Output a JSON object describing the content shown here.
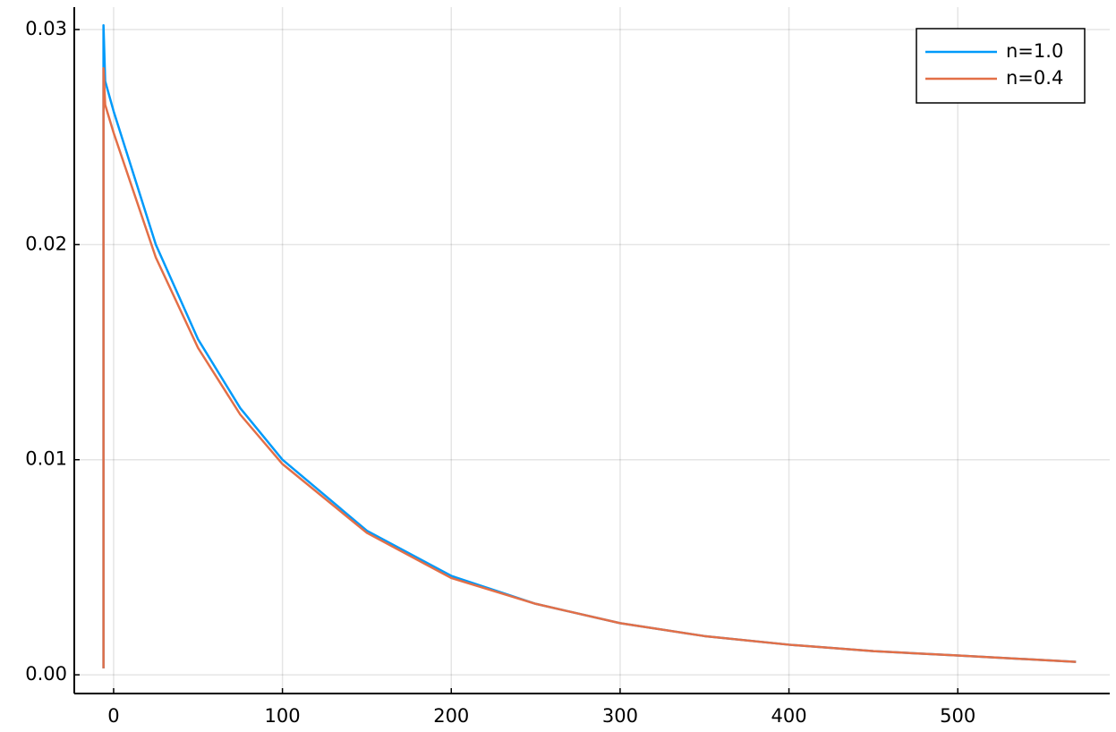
{
  "chart_data": {
    "type": "line",
    "x": [
      -6,
      -6,
      -5,
      0,
      25,
      50,
      75,
      100,
      150,
      200,
      250,
      300,
      350,
      400,
      450,
      500,
      570
    ],
    "series": [
      {
        "name": "n=1.0",
        "color": "#009afa",
        "values": [
          0.0003,
          0.0302,
          0.0276,
          0.0262,
          0.02,
          0.0156,
          0.0124,
          0.01,
          0.0067,
          0.0046,
          0.0033,
          0.0024,
          0.0018,
          0.0014,
          0.0011,
          0.0009,
          0.0006
        ]
      },
      {
        "name": "n=0.4",
        "color": "#e36f47",
        "values": [
          0.0003,
          0.0282,
          0.0265,
          0.0252,
          0.0194,
          0.0152,
          0.0121,
          0.0098,
          0.0066,
          0.0045,
          0.0033,
          0.0024,
          0.0018,
          0.0014,
          0.0011,
          0.0009,
          0.0006
        ]
      }
    ],
    "xlim": [
      -23.3,
      590
    ],
    "ylim": [
      -0.00087,
      0.03104
    ],
    "xticks": [
      0,
      100,
      200,
      300,
      400,
      500
    ],
    "yticks": [
      {
        "value": 0,
        "label": "0.00"
      },
      0.01,
      0.02,
      0.03
    ],
    "grid": true,
    "legend": "top-right"
  }
}
